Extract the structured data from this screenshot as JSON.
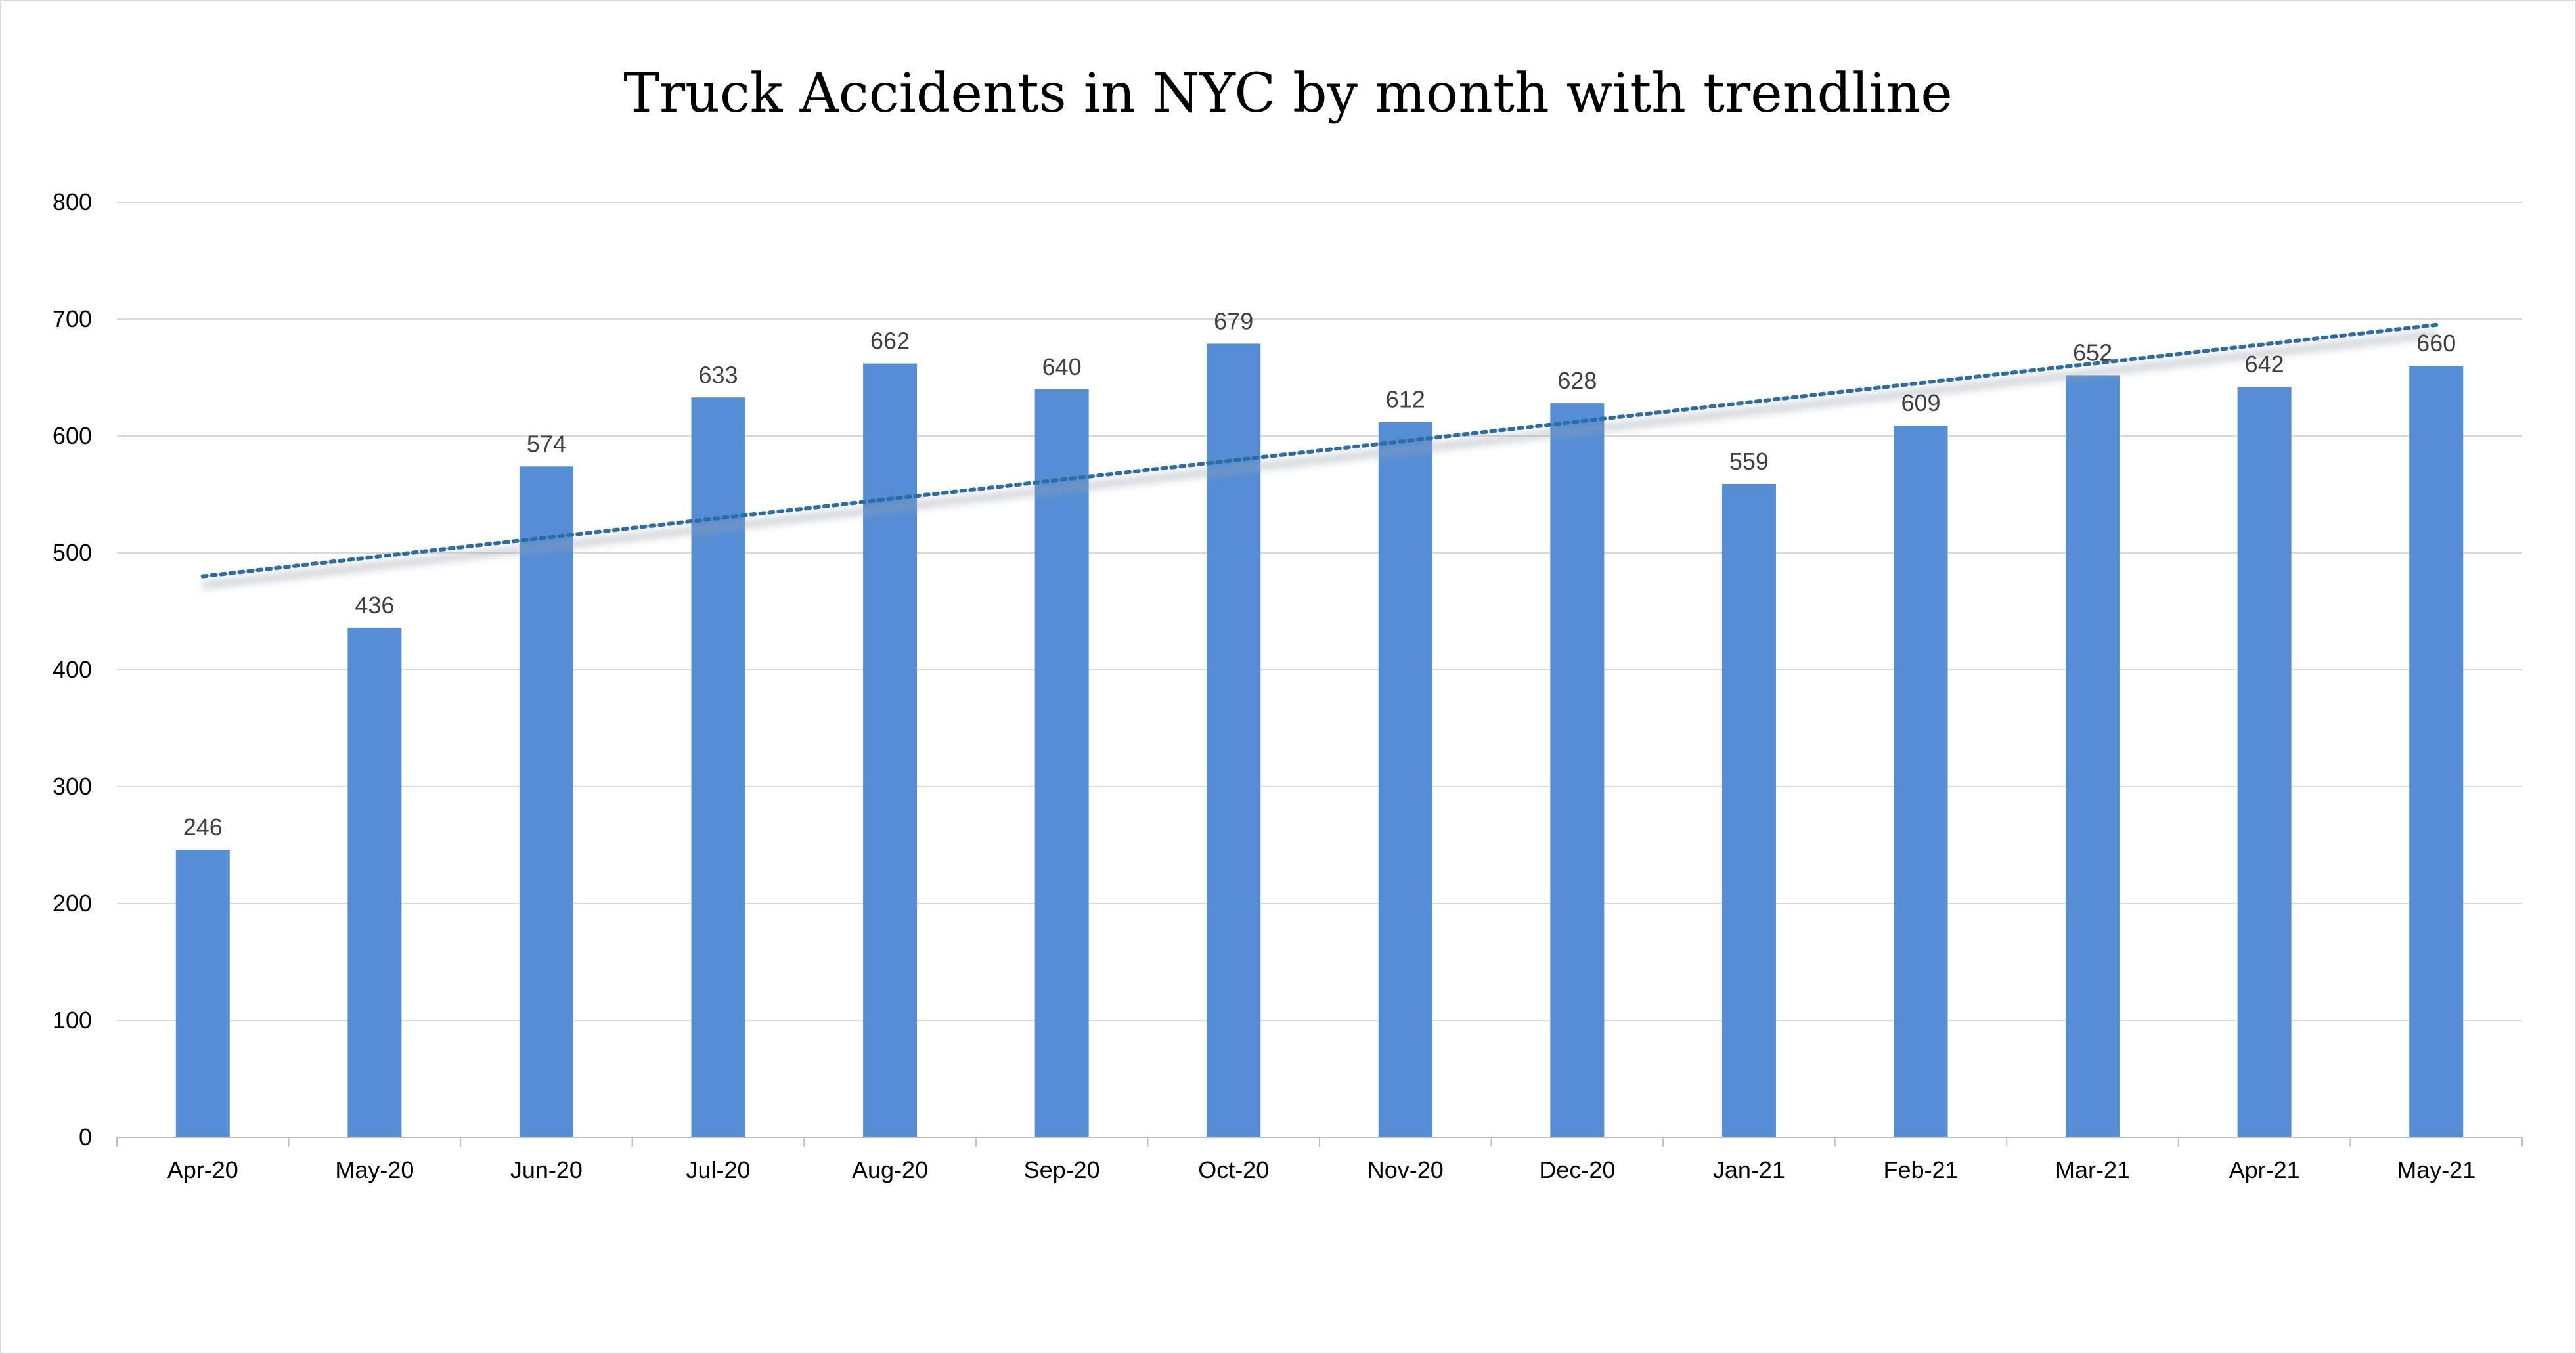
{
  "chart_data": {
    "type": "bar",
    "title": "Truck Accidents in NYC by month with trendline",
    "xlabel": "",
    "ylabel": "",
    "categories": [
      "Apr-20",
      "May-20",
      "Jun-20",
      "Jul-20",
      "Aug-20",
      "Sep-20",
      "Oct-20",
      "Nov-20",
      "Dec-20",
      "Jan-21",
      "Feb-21",
      "Mar-21",
      "Apr-21",
      "May-21"
    ],
    "values": [
      246,
      436,
      574,
      633,
      662,
      640,
      679,
      612,
      628,
      559,
      609,
      652,
      642,
      660
    ],
    "ylim": [
      0,
      800
    ],
    "yticks": [
      0,
      100,
      200,
      300,
      400,
      500,
      600,
      700,
      800
    ],
    "grid": true,
    "legend": "none",
    "data_labels": true,
    "trendline": {
      "type": "linear",
      "style": "dotted",
      "start_value": 480,
      "end_value": 695
    },
    "colors": {
      "bar": "#558ed5",
      "trendline": "#2e6ca4",
      "gridline": "#d9d9d9",
      "axis": "#bfbfbf"
    }
  }
}
